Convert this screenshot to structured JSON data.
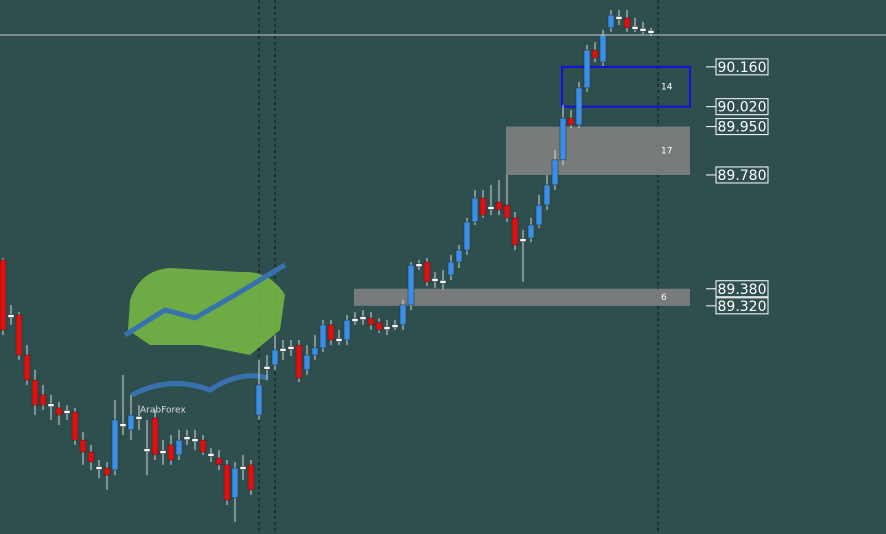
{
  "chart_data": {
    "type": "candlestick",
    "ylim": [
      88.518,
      90.395
    ],
    "colors": {
      "up": "#3b8ee8",
      "down": "#e01010",
      "doji": "#ffffff",
      "wick": "#d8d8d8"
    },
    "open": [
      89.481,
      89.284,
      89.288,
      89.147,
      89.059,
      89.007,
      88.971,
      88.961,
      88.947,
      88.947,
      88.848,
      88.806,
      88.75,
      88.75,
      88.743,
      88.901,
      88.884,
      88.926,
      88.813,
      88.926,
      88.806,
      88.831,
      88.796,
      88.855,
      88.848,
      88.848,
      88.796,
      88.785,
      88.761,
      88.645,
      88.75,
      88.761,
      88.936,
      89.102,
      89.112,
      89.165,
      89.172,
      89.182,
      89.095,
      89.147,
      89.172,
      89.253,
      89.2,
      89.2,
      89.27,
      89.277,
      89.277,
      89.263,
      89.242,
      89.249,
      89.253,
      89.323,
      89.463,
      89.474,
      89.411,
      89.404,
      89.428,
      89.474,
      89.516,
      89.615,
      89.699,
      89.664,
      89.685,
      89.674,
      89.629,
      89.551,
      89.558,
      89.604,
      89.674,
      89.745,
      89.833,
      89.98,
      89.956,
      90.086,
      90.219,
      90.177,
      90.297,
      90.332,
      90.332,
      90.297,
      90.29,
      90.283
    ],
    "close": [
      89.235,
      89.284,
      89.147,
      89.059,
      88.971,
      88.971,
      88.971,
      88.936,
      88.947,
      88.848,
      88.806,
      88.771,
      88.75,
      88.725,
      88.919,
      88.901,
      88.936,
      88.926,
      88.813,
      88.796,
      88.806,
      88.778,
      88.848,
      88.855,
      88.848,
      88.806,
      88.796,
      88.761,
      88.637,
      88.75,
      88.75,
      88.673,
      89.042,
      89.102,
      89.165,
      89.165,
      89.172,
      89.066,
      89.147,
      89.172,
      89.253,
      89.2,
      89.2,
      89.27,
      89.27,
      89.277,
      89.253,
      89.235,
      89.242,
      89.249,
      89.323,
      89.463,
      89.463,
      89.404,
      89.411,
      89.404,
      89.474,
      89.516,
      89.615,
      89.699,
      89.639,
      89.664,
      89.657,
      89.629,
      89.534,
      89.551,
      89.604,
      89.674,
      89.745,
      89.833,
      89.98,
      89.956,
      90.086,
      90.219,
      90.191,
      90.272,
      90.342,
      90.332,
      90.297,
      90.297,
      90.29,
      90.283
    ],
    "high": [
      89.488,
      89.323,
      89.298,
      89.182,
      89.095,
      89.042,
      89.007,
      88.982,
      88.971,
      88.961,
      88.877,
      88.831,
      88.778,
      88.771,
      88.989,
      89.077,
      89.007,
      88.971,
      88.919,
      88.954,
      88.848,
      88.866,
      88.884,
      88.884,
      88.884,
      88.866,
      88.82,
      88.813,
      88.778,
      88.771,
      88.796,
      88.778,
      89.13,
      89.147,
      89.217,
      89.2,
      89.2,
      89.2,
      89.182,
      89.217,
      89.27,
      89.27,
      89.235,
      89.288,
      89.298,
      89.305,
      89.298,
      89.277,
      89.27,
      89.27,
      89.341,
      89.474,
      89.481,
      89.488,
      89.439,
      89.446,
      89.499,
      89.534,
      89.629,
      89.727,
      89.727,
      89.745,
      89.762,
      89.78,
      89.65,
      89.587,
      89.629,
      89.71,
      89.78,
      89.868,
      90.026,
      90.008,
      90.107,
      90.237,
      90.247,
      90.29,
      90.36,
      90.36,
      90.36,
      90.332,
      90.318,
      90.297
    ],
    "low": [
      89.217,
      89.253,
      89.13,
      89.042,
      88.936,
      88.954,
      88.919,
      88.901,
      88.919,
      88.831,
      88.761,
      88.743,
      88.715,
      88.673,
      88.725,
      88.866,
      88.848,
      88.884,
      88.725,
      88.778,
      88.761,
      88.761,
      88.778,
      88.831,
      88.813,
      88.796,
      88.771,
      88.743,
      88.62,
      88.56,
      88.708,
      88.655,
      88.919,
      89.059,
      89.095,
      89.13,
      89.144,
      89.052,
      89.077,
      89.13,
      89.158,
      89.182,
      89.182,
      89.182,
      89.253,
      89.253,
      89.235,
      89.225,
      89.217,
      89.235,
      89.235,
      89.305,
      89.446,
      89.39,
      89.383,
      89.376,
      89.411,
      89.453,
      89.499,
      89.604,
      89.629,
      89.639,
      89.639,
      89.615,
      89.516,
      89.404,
      89.544,
      89.594,
      89.657,
      89.727,
      89.815,
      89.945,
      89.945,
      90.072,
      90.177,
      90.163,
      90.283,
      90.307,
      90.283,
      90.283,
      90.275,
      90.268
    ],
    "price_line": 90.272,
    "zones": [
      {
        "top": {
          "value": 90.16,
          "label": "90.160"
        },
        "bottom": {
          "value": 90.02,
          "label": "90.020"
        },
        "count": 14,
        "style": "outline",
        "color": "#1010e0"
      },
      {
        "top": {
          "value": 89.95,
          "label": "89.950"
        },
        "bottom": {
          "value": 89.78,
          "label": "89.780"
        },
        "count": 17,
        "style": "fill",
        "color": "#808080"
      },
      {
        "top": {
          "value": 89.38,
          "label": "89.380"
        },
        "bottom": {
          "value": 89.32,
          "label": "89.320"
        },
        "count": 6,
        "style": "fill",
        "color": "#808080"
      }
    ],
    "watermark": "ArabForex"
  }
}
